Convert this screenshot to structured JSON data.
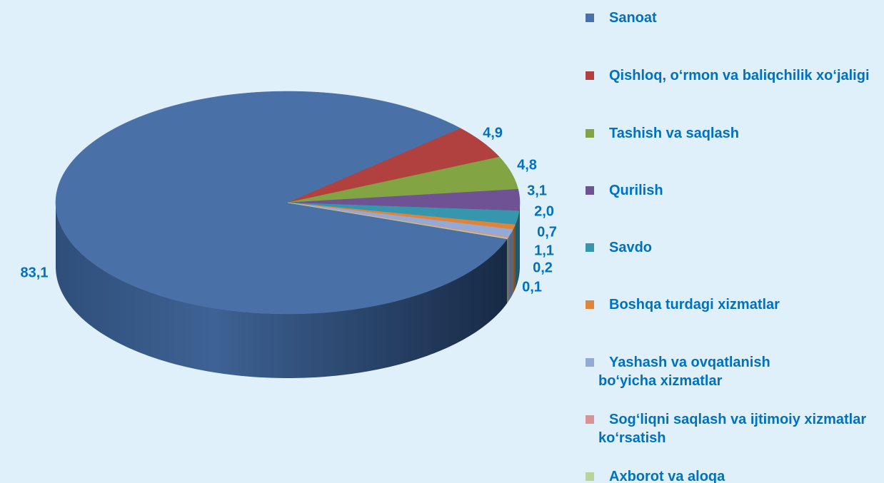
{
  "chart_data": {
    "type": "pie3d",
    "categories": [
      "Sanoat",
      "Qishloq, o‘rmon va baliqchilik xo‘jaligi",
      "Tashish va saqlash",
      "Qurilish",
      "Savdo",
      "Boshqa turdagi xizmatlar",
      "Yashash va ovqatlanish bo‘yicha xizmatlar",
      "Sog‘liqni saqlash va ijtimoiy xizmatlar ko‘rsatish",
      "Axborot va aloqa"
    ],
    "values": [
      83.1,
      4.9,
      4.8,
      3.1,
      2.0,
      0.7,
      1.1,
      0.2,
      0.1
    ],
    "value_labels": [
      "83,1",
      "4,9",
      "4,8",
      "3,1",
      "2,0",
      "0,7",
      "1,1",
      "0,2",
      "0,1"
    ],
    "colors": [
      "#4a70a8",
      "#b0413e",
      "#83a443",
      "#6e5294",
      "#3696ae",
      "#e0843a",
      "#94aad6",
      "#d69593",
      "#b9d39a"
    ],
    "legend": "right"
  }
}
